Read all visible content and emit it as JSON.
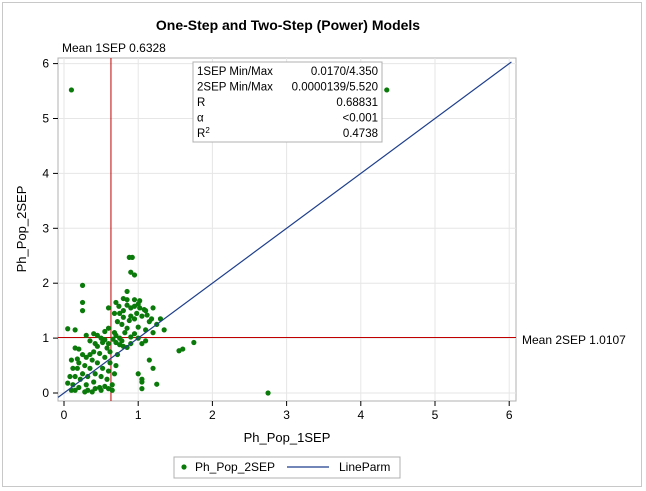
{
  "chart_data": {
    "type": "scatter",
    "title": "One-Step and Two-Step (Power) Models",
    "xlabel": "Ph_Pop_1SEP",
    "ylabel": "Ph_Pop_2SEP",
    "xlim": [
      0,
      6
    ],
    "ylim": [
      0,
      6
    ],
    "x_ticks": [
      "0",
      "1",
      "2",
      "3",
      "4",
      "5",
      "6"
    ],
    "y_ticks": [
      "0",
      "1",
      "2",
      "3",
      "4",
      "5",
      "6"
    ],
    "grid": true,
    "ref_lines": {
      "vertical": {
        "value": 0.6328,
        "label": "Mean 1SEP 0.6328",
        "color": "#c00000"
      },
      "horizontal": {
        "value": 1.0107,
        "label": "Mean 2SEP 1.0107",
        "color": "#c00000"
      }
    },
    "line_parm": {
      "name": "LineParm",
      "intercept": 0,
      "slope": 1,
      "color": "#1f3f8c"
    },
    "inset_table": [
      {
        "label": "1SEP Min/Max",
        "value": "0.0170/4.350"
      },
      {
        "label": "2SEP Min/Max",
        "value": "0.0000139/5.520"
      },
      {
        "label": "R",
        "value": "0.68831"
      },
      {
        "label": "α",
        "value": "<0.001"
      },
      {
        "label": "R²",
        "value": "0.4738"
      }
    ],
    "legend": {
      "placement": "bottom",
      "entries": [
        {
          "name": "Ph_Pop_2SEP",
          "kind": "marker",
          "color": "#0a7a0a"
        },
        {
          "name": "LineParm",
          "kind": "line",
          "color": "#1f3f8c"
        }
      ]
    },
    "series": [
      {
        "name": "Ph_Pop_2SEP",
        "color": "#0a7a0a",
        "points": [
          [
            0.1,
            5.52
          ],
          [
            4.35,
            5.52
          ],
          [
            2.75,
            0.0
          ],
          [
            0.25,
            1.96
          ],
          [
            0.25,
            1.65
          ],
          [
            0.25,
            1.5
          ],
          [
            0.15,
            1.15
          ],
          [
            0.05,
            1.17
          ],
          [
            0.15,
            0.82
          ],
          [
            0.2,
            0.55
          ],
          [
            0.3,
            1.05
          ],
          [
            0.35,
            0.95
          ],
          [
            0.4,
            1.08
          ],
          [
            0.45,
            1.05
          ],
          [
            0.5,
            1.0
          ],
          [
            0.55,
            1.12
          ],
          [
            0.6,
            1.18
          ],
          [
            0.55,
            0.97
          ],
          [
            0.6,
            0.9
          ],
          [
            0.7,
            0.92
          ],
          [
            0.75,
            0.88
          ],
          [
            0.8,
            0.85
          ],
          [
            0.85,
            0.83
          ],
          [
            0.9,
            0.9
          ],
          [
            0.6,
            1.55
          ],
          [
            0.7,
            1.65
          ],
          [
            0.75,
            1.45
          ],
          [
            0.8,
            1.5
          ],
          [
            0.85,
            1.6
          ],
          [
            0.9,
            1.55
          ],
          [
            0.95,
            1.7
          ],
          [
            0.98,
            1.45
          ],
          [
            1.02,
            1.55
          ],
          [
            1.05,
            1.4
          ],
          [
            1.1,
            1.5
          ],
          [
            1.15,
            1.3
          ],
          [
            1.2,
            1.55
          ],
          [
            1.25,
            1.25
          ],
          [
            1.3,
            1.35
          ],
          [
            1.35,
            1.15
          ],
          [
            1.2,
            1.1
          ],
          [
            1.1,
            1.15
          ],
          [
            1.0,
            1.2
          ],
          [
            0.95,
            1.35
          ],
          [
            0.9,
            1.4
          ],
          [
            0.88,
            2.47
          ],
          [
            0.92,
            2.47
          ],
          [
            0.9,
            2.2
          ],
          [
            0.95,
            2.15
          ],
          [
            0.85,
            1.85
          ],
          [
            0.8,
            1.72
          ],
          [
            0.85,
            1.7
          ],
          [
            1.0,
            1.0
          ],
          [
            1.05,
            0.9
          ],
          [
            1.1,
            0.95
          ],
          [
            1.15,
            0.6
          ],
          [
            1.2,
            0.45
          ],
          [
            1.0,
            0.35
          ],
          [
            1.05,
            0.25
          ],
          [
            1.05,
            0.08
          ],
          [
            1.05,
            0.2
          ],
          [
            1.25,
            0.16
          ],
          [
            1.55,
            0.77
          ],
          [
            1.6,
            0.8
          ],
          [
            1.75,
            0.92
          ],
          [
            0.1,
            0.05
          ],
          [
            0.12,
            0.15
          ],
          [
            0.15,
            0.3
          ],
          [
            0.18,
            0.45
          ],
          [
            0.2,
            0.1
          ],
          [
            0.22,
            0.25
          ],
          [
            0.25,
            0.35
          ],
          [
            0.28,
            0.5
          ],
          [
            0.3,
            0.15
          ],
          [
            0.32,
            0.3
          ],
          [
            0.35,
            0.45
          ],
          [
            0.38,
            0.6
          ],
          [
            0.4,
            0.2
          ],
          [
            0.42,
            0.35
          ],
          [
            0.45,
            0.55
          ],
          [
            0.48,
            0.1
          ],
          [
            0.5,
            0.3
          ],
          [
            0.52,
            0.45
          ],
          [
            0.55,
            0.65
          ],
          [
            0.58,
            0.25
          ],
          [
            0.6,
            0.4
          ],
          [
            0.62,
            0.55
          ],
          [
            0.65,
            0.15
          ],
          [
            0.68,
            0.35
          ],
          [
            0.7,
            0.5
          ],
          [
            0.72,
            0.7
          ],
          [
            0.5,
            0.05
          ],
          [
            0.55,
            0.12
          ],
          [
            0.6,
            0.08
          ],
          [
            0.65,
            0.05
          ],
          [
            0.45,
            0.85
          ],
          [
            0.4,
            0.75
          ],
          [
            0.35,
            0.7
          ],
          [
            0.3,
            0.65
          ],
          [
            0.25,
            0.7
          ],
          [
            0.2,
            0.8
          ],
          [
            0.18,
            0.62
          ],
          [
            0.12,
            0.45
          ],
          [
            0.08,
            0.3
          ],
          [
            0.05,
            0.18
          ],
          [
            0.1,
            0.6
          ],
          [
            0.15,
            0.05
          ],
          [
            0.32,
            0.05
          ],
          [
            0.38,
            0.02
          ],
          [
            0.42,
            0.08
          ],
          [
            0.28,
            0.02
          ],
          [
            0.62,
            0.75
          ],
          [
            0.58,
            0.82
          ],
          [
            0.48,
            0.72
          ],
          [
            0.52,
            0.92
          ],
          [
            0.42,
            0.9
          ],
          [
            0.66,
            0.98
          ],
          [
            0.7,
            1.05
          ],
          [
            0.75,
            1.0
          ],
          [
            0.68,
            1.1
          ],
          [
            0.78,
            0.95
          ],
          [
            0.82,
            1.1
          ],
          [
            0.85,
            1.18
          ],
          [
            0.9,
            1.02
          ],
          [
            0.95,
            1.08
          ],
          [
            0.72,
            1.3
          ],
          [
            0.78,
            1.25
          ],
          [
            0.68,
            1.45
          ],
          [
            0.74,
            1.58
          ],
          [
            0.8,
            1.38
          ],
          [
            0.88,
            1.32
          ],
          [
            1.0,
            1.62
          ],
          [
            1.08,
            1.52
          ],
          [
            1.12,
            1.42
          ],
          [
            1.18,
            1.35
          ],
          [
            0.95,
            1.58
          ],
          [
            1.02,
            1.68
          ]
        ]
      }
    ]
  }
}
